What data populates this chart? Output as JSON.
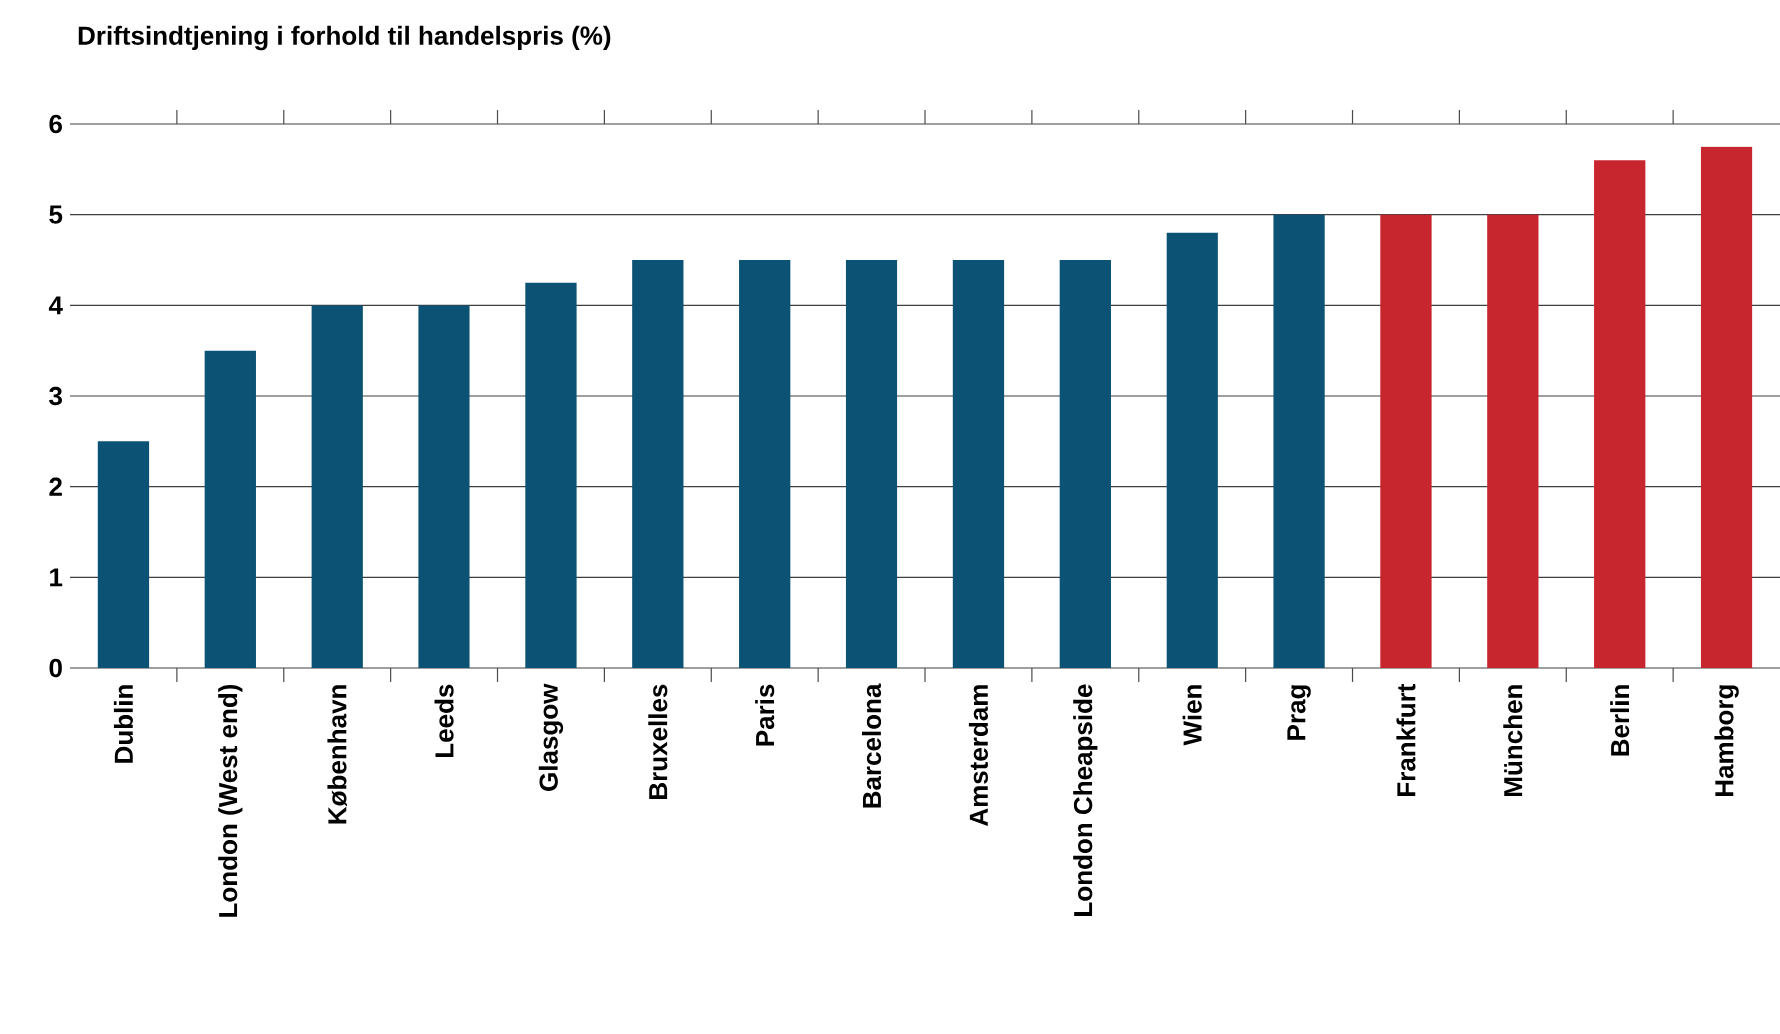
{
  "chart_data": {
    "type": "bar",
    "title": "Driftsindtjening i forhold til handelspris (%)",
    "categories": [
      "Dublin",
      "London (West end)",
      "København",
      "Leeds",
      "Glasgow",
      "Bruxelles",
      "Paris",
      "Barcelona",
      "Amsterdam",
      "London Cheapside",
      "Wien",
      "Prag",
      "Frankfurt",
      "München",
      "Berlin",
      "Hamborg"
    ],
    "values": [
      2.5,
      3.5,
      4,
      4,
      4.25,
      4.5,
      4.5,
      4.5,
      4.5,
      4.5,
      4.8,
      5,
      5,
      5,
      5.6,
      5.75
    ],
    "colors": [
      "#0b5274",
      "#0b5274",
      "#0b5274",
      "#0b5274",
      "#0b5274",
      "#0b5274",
      "#0b5274",
      "#0b5274",
      "#0b5274",
      "#0b5274",
      "#0b5274",
      "#0b5274",
      "#c8262e",
      "#c8262e",
      "#c8262e",
      "#c8262e"
    ],
    "ylim": [
      0,
      6
    ],
    "yticks": [
      0,
      1,
      2,
      3,
      4,
      5,
      6
    ],
    "grid": "y"
  }
}
